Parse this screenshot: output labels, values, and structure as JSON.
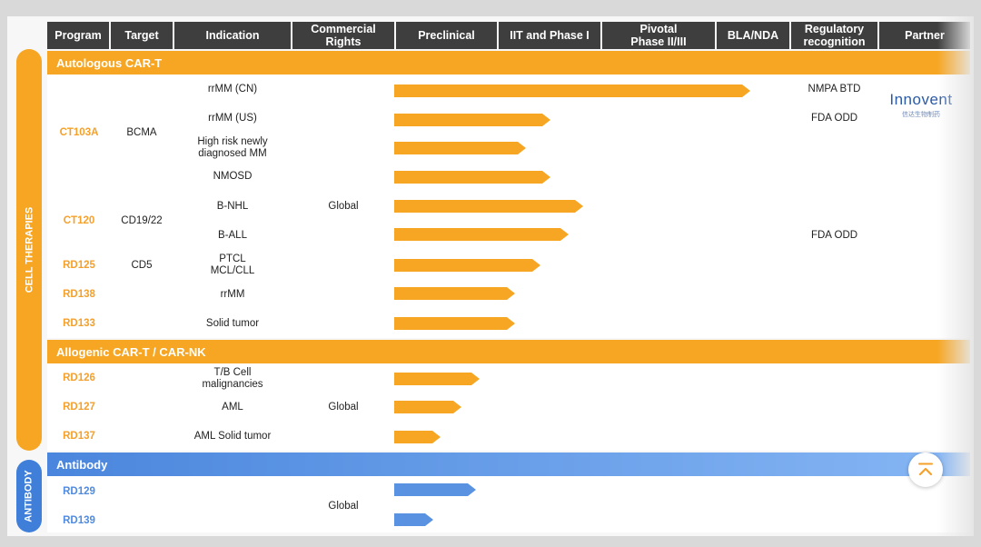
{
  "headers": {
    "program": "Program",
    "target": "Target",
    "indication": "Indication",
    "commercial_rights": "Commercial Rights",
    "preclinical": "Preclinical",
    "iit_phase1": "IIT and Phase I",
    "pivotal": "Pivotal Phase II/III",
    "bla_nda": "BLA/NDA",
    "regulatory": "Regulatory recognition",
    "partner": "Partner"
  },
  "side_labels": {
    "cell_therapies": "CELL THERAPIES",
    "antibody": "ANTIBODY"
  },
  "sections": {
    "autologous": "Autologous CAR-T",
    "allogenic": "Allogenic CAR-T / CAR-NK",
    "antibody": "Antibody"
  },
  "programs": {
    "ct103a": "CT103A",
    "ct120": "CT120",
    "rd125": "RD125",
    "rd138": "RD138",
    "rd133": "RD133",
    "rd126": "RD126",
    "rd127": "RD127",
    "rd137": "RD137",
    "rd129": "RD129",
    "rd139": "RD139"
  },
  "targets": {
    "ct103a": "BCMA",
    "ct120": "CD19/22",
    "rd125": "CD5"
  },
  "indications": {
    "rrmm_cn": "rrMM (CN)",
    "rrmm_us": "rrMM (US)",
    "high_risk": "High risk newly diagnosed MM",
    "nmosd": "NMOSD",
    "bnhl": "B-NHL",
    "ball": "B-ALL",
    "ptcl": "PTCL MCL/CLL",
    "rrmm": "rrMM",
    "solid": "Solid tumor",
    "tb_cell": "T/B Cell malignancies",
    "aml": "AML",
    "aml_solid": "AML Solid tumor"
  },
  "commercial": {
    "autologous": "Global",
    "allogenic": "Global",
    "antibody": "Global"
  },
  "regulatory": {
    "rrmm_cn": "NMPA BTD",
    "rrmm_us": "FDA ODD",
    "ball": "FDA ODD"
  },
  "partner": {
    "name": "Innovent",
    "subtitle": "信达生物制药"
  },
  "progress": {
    "rrmm_cn": 1.0,
    "rrmm_us": 0.44,
    "high_risk": 0.37,
    "nmosd": 0.44,
    "bnhl": 0.53,
    "ball": 0.49,
    "ptcl": 0.41,
    "rrmm": 0.34,
    "solid": 0.34,
    "tb_cell": 0.24,
    "aml": 0.19,
    "aml_solid": 0.13,
    "rd129": 0.23,
    "rd139": 0.11
  },
  "colors": {
    "orange": "#f6a623",
    "blue": "#4a86dd",
    "header_bg": "#3e3e3e"
  },
  "icons": {
    "scroll_top": "double-chevron-up-icon"
  }
}
